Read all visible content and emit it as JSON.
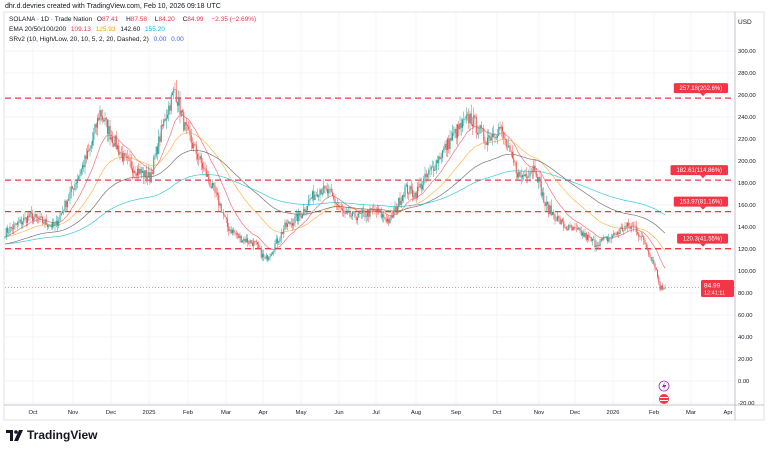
{
  "header": {
    "text": "dhr.d.devries created with TradingView.com, Feb 10, 2026 09:18 UTC"
  },
  "legend": {
    "symbol": "SOLANA · 1D · Trade Nation",
    "open_label": "O",
    "open": "87.41",
    "high_label": "H",
    "high": "87.58",
    "low_label": "L",
    "low": "84.20",
    "close_label": "C",
    "close": "84.99",
    "change": "−2.35 (−2.69%)",
    "ema_label": "EMA 20/50/100/200",
    "ema_values": [
      "109.13",
      "125.93",
      "142.60",
      "155.20"
    ],
    "sr_label": "SRv2 (10, High/Low, 20, 10, 5, 2, 20, Dashed, 2)",
    "sr_values": [
      "0.00",
      "0.00"
    ]
  },
  "currency": "USD",
  "price_tag": {
    "price": "84.99",
    "countdown": "12:41:11"
  },
  "levels": [
    {
      "price": 257.18,
      "label": "257.18(202.6%)"
    },
    {
      "price": 182.61,
      "label": "182.61(114.86%)"
    },
    {
      "price": 153.97,
      "label": "153.97(81.16%)"
    },
    {
      "price": 120.3,
      "label": "120.3(41.55%)"
    }
  ],
  "logo": {
    "text": "TradingView"
  },
  "colors": {
    "up": "#26a69a",
    "down": "#ef5350",
    "level": "#f23645",
    "ema20": "#f23645",
    "ema50": "#ff9800",
    "ema100": "#555555",
    "ema200": "#00bcd4"
  },
  "chart_data": {
    "type": "candlestick",
    "title": "SOLANA · 1D · Trade Nation",
    "ylabel": "USD",
    "ylim": [
      -20,
      300
    ],
    "y_ticks": [
      "300.00",
      "280.00",
      "260.00",
      "240.00",
      "220.00",
      "200.00",
      "180.00",
      "160.00",
      "140.00",
      "120.00",
      "100.00",
      "80.00",
      "60.00",
      "40.00",
      "20.00",
      "0.00",
      "-20.00"
    ],
    "x_ticks": [
      "Oct",
      "Nov",
      "Dec",
      "2025",
      "Feb",
      "Mar",
      "Apr",
      "May",
      "Jun",
      "Jul",
      "Aug",
      "Sep",
      "Oct",
      "Nov",
      "Dec",
      "2026",
      "Feb",
      "Mar",
      "Apr"
    ],
    "start_date": "2024-09-08",
    "key_closes": [
      [
        0,
        135
      ],
      [
        20,
        150
      ],
      [
        40,
        140
      ],
      [
        56,
        180
      ],
      [
        68,
        210
      ],
      [
        76,
        245
      ],
      [
        84,
        225
      ],
      [
        96,
        200
      ],
      [
        108,
        190
      ],
      [
        116,
        185
      ],
      [
        128,
        240
      ],
      [
        136,
        265
      ],
      [
        144,
        230
      ],
      [
        152,
        210
      ],
      [
        164,
        180
      ],
      [
        172,
        160
      ],
      [
        178,
        140
      ],
      [
        188,
        130
      ],
      [
        200,
        125
      ],
      [
        208,
        110
      ],
      [
        214,
        120
      ],
      [
        224,
        140
      ],
      [
        236,
        150
      ],
      [
        244,
        165
      ],
      [
        252,
        175
      ],
      [
        260,
        170
      ],
      [
        272,
        150
      ],
      [
        284,
        150
      ],
      [
        296,
        155
      ],
      [
        308,
        145
      ],
      [
        320,
        175
      ],
      [
        328,
        170
      ],
      [
        340,
        190
      ],
      [
        348,
        205
      ],
      [
        360,
        225
      ],
      [
        372,
        240
      ],
      [
        384,
        220
      ],
      [
        396,
        230
      ],
      [
        404,
        205
      ],
      [
        412,
        185
      ],
      [
        424,
        195
      ],
      [
        432,
        160
      ],
      [
        440,
        150
      ],
      [
        448,
        140
      ],
      [
        460,
        135
      ],
      [
        472,
        125
      ],
      [
        484,
        130
      ],
      [
        496,
        140
      ],
      [
        504,
        140
      ],
      [
        512,
        125
      ],
      [
        520,
        105
      ],
      [
        524,
        85
      ],
      [
        528,
        85
      ]
    ],
    "grid": true
  }
}
